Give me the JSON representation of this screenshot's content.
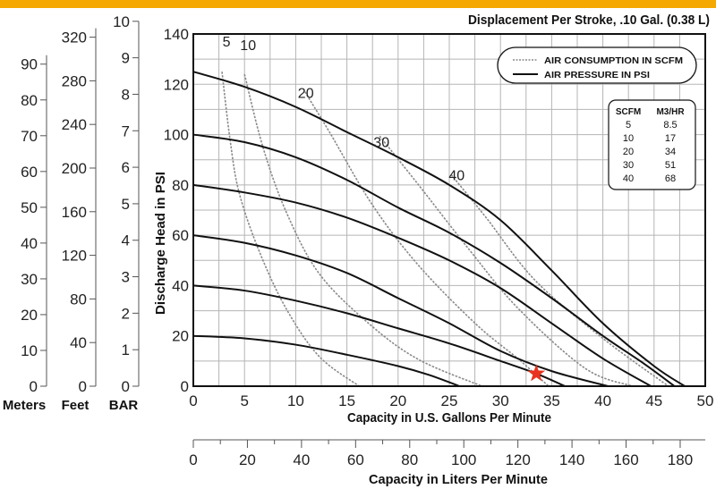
{
  "header_color": "#F5A800",
  "chart_data": {
    "type": "line",
    "title": "Displacement Per Stroke, .10 Gal. (0.38 L)",
    "xlabel": "Capacity in U.S. Gallons Per Minute",
    "x2label": "Capacity in Liters Per Minute",
    "ylabel": "Discharge Head in PSI",
    "xlim": [
      0,
      50
    ],
    "ylim": [
      0,
      140
    ],
    "x_ticks": [
      0,
      5,
      10,
      15,
      20,
      25,
      30,
      35,
      40,
      45,
      50
    ],
    "y_ticks": [
      0,
      20,
      40,
      60,
      80,
      100,
      120,
      140
    ],
    "x2_ticks": [
      0,
      20,
      40,
      60,
      80,
      100,
      120,
      140,
      160,
      180
    ],
    "grid": true,
    "secondary_y_axes": [
      {
        "label": "Meters",
        "ticks": [
          0,
          10,
          20,
          30,
          40,
          50,
          60,
          70,
          80,
          90
        ]
      },
      {
        "label": "Feet",
        "ticks": [
          0,
          40,
          80,
          120,
          160,
          200,
          240,
          280,
          320
        ]
      },
      {
        "label": "BAR",
        "ticks": [
          0,
          1,
          2,
          3,
          4,
          5,
          6,
          7,
          8,
          9,
          10
        ]
      }
    ],
    "legend": {
      "placement": "top-right",
      "entries": [
        {
          "label": "AIR CONSUMPTION IN SCFM",
          "style": "dashed",
          "color": "#8a8a8a"
        },
        {
          "label": "AIR PRESSURE IN PSI",
          "style": "solid",
          "color": "#111111"
        }
      ]
    },
    "conversion_table": {
      "headers": [
        "SCFM",
        "M3/HR"
      ],
      "rows": [
        [
          "5",
          "8.5"
        ],
        [
          "10",
          "17"
        ],
        [
          "20",
          "34"
        ],
        [
          "30",
          "51"
        ],
        [
          "40",
          "68"
        ]
      ]
    },
    "pressure_curves": [
      {
        "psi": 20,
        "points": [
          [
            0,
            20
          ],
          [
            5,
            19
          ],
          [
            10,
            16.5
          ],
          [
            15,
            12.5
          ],
          [
            20,
            8
          ],
          [
            23,
            4.5
          ],
          [
            26,
            0
          ]
        ]
      },
      {
        "psi": 40,
        "points": [
          [
            0,
            40
          ],
          [
            5,
            38
          ],
          [
            10,
            34
          ],
          [
            15,
            29
          ],
          [
            20,
            23
          ],
          [
            25,
            17
          ],
          [
            30,
            10
          ],
          [
            33.5,
            5
          ],
          [
            36.3,
            0
          ]
        ]
      },
      {
        "psi": 60,
        "points": [
          [
            0,
            60
          ],
          [
            5,
            57
          ],
          [
            10,
            52
          ],
          [
            15,
            45
          ],
          [
            20,
            35
          ],
          [
            25,
            25
          ],
          [
            30,
            14
          ],
          [
            35,
            6
          ],
          [
            40.5,
            0
          ]
        ]
      },
      {
        "psi": 80,
        "points": [
          [
            0,
            80
          ],
          [
            5,
            77
          ],
          [
            10,
            73
          ],
          [
            15,
            67
          ],
          [
            20,
            59
          ],
          [
            25,
            50
          ],
          [
            30,
            39
          ],
          [
            35,
            25
          ],
          [
            40,
            11
          ],
          [
            44.7,
            0
          ]
        ]
      },
      {
        "psi": 100,
        "points": [
          [
            0,
            100
          ],
          [
            5,
            97
          ],
          [
            10,
            91
          ],
          [
            15,
            82
          ],
          [
            20,
            71
          ],
          [
            25,
            61
          ],
          [
            30,
            49
          ],
          [
            35,
            35
          ],
          [
            40,
            20
          ],
          [
            44,
            9
          ],
          [
            47,
            0
          ]
        ]
      },
      {
        "psi": 125,
        "points": [
          [
            0,
            125
          ],
          [
            5,
            119
          ],
          [
            10,
            111
          ],
          [
            15,
            101
          ],
          [
            20,
            91
          ],
          [
            25,
            80
          ],
          [
            30,
            66
          ],
          [
            35,
            46
          ],
          [
            40,
            25
          ],
          [
            45,
            8
          ],
          [
            48,
            0
          ]
        ]
      }
    ],
    "air_curves": [
      {
        "label": "5",
        "points": [
          [
            2.8,
            125
          ],
          [
            3.6,
            97.6
          ],
          [
            4.5,
            76.5
          ],
          [
            6.5,
            53
          ],
          [
            9.1,
            30.6
          ],
          [
            12.3,
            11.8
          ],
          [
            16.2,
            0
          ]
        ]
      },
      {
        "label": "10",
        "points": [
          [
            5,
            124
          ],
          [
            6.8,
            95
          ],
          [
            9.1,
            69
          ],
          [
            12.3,
            44.7
          ],
          [
            17.2,
            24.7
          ],
          [
            22,
            10.6
          ],
          [
            28.2,
            0
          ]
        ]
      },
      {
        "label": "20",
        "points": [
          [
            10.9,
            117
          ],
          [
            13.3,
            101
          ],
          [
            17.5,
            72
          ],
          [
            22,
            48
          ],
          [
            27.6,
            24.7
          ],
          [
            31.8,
            10.6
          ],
          [
            34.7,
            0
          ]
        ]
      },
      {
        "label": "30",
        "points": [
          [
            18.2,
            99.4
          ],
          [
            22,
            80
          ],
          [
            27,
            54
          ],
          [
            31.8,
            30.6
          ],
          [
            38.3,
            7
          ],
          [
            42.9,
            0
          ]
        ]
      },
      {
        "label": "40",
        "points": [
          [
            25.2,
            84
          ],
          [
            28.6,
            67
          ],
          [
            33.4,
            42
          ],
          [
            40,
            19
          ],
          [
            46.4,
            0
          ]
        ]
      }
    ],
    "marker": {
      "shape": "star",
      "color": "#E8321E",
      "x": 33.5,
      "y": 5
    }
  }
}
